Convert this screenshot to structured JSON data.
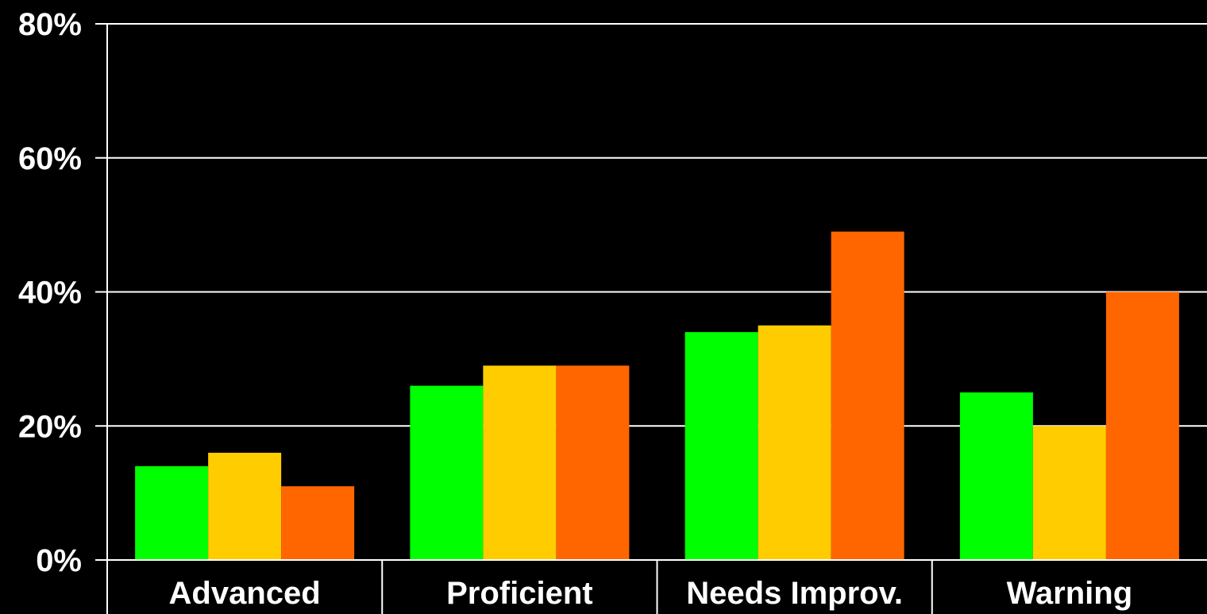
{
  "chart_data": {
    "type": "bar",
    "categories": [
      "Advanced",
      "Proficient",
      "Needs Improv.",
      "Warning"
    ],
    "series": [
      {
        "values": [
          14,
          26,
          34,
          25
        ],
        "color": "#00ff00"
      },
      {
        "values": [
          16,
          29,
          35,
          20
        ],
        "color": "#ffcc00"
      },
      {
        "values": [
          11,
          29,
          49,
          40
        ],
        "color": "#ff6600"
      }
    ],
    "ylim": [
      0,
      80
    ],
    "yticks": [
      0,
      20,
      40,
      60,
      80
    ],
    "ytick_labels": [
      "0%",
      "20%",
      "40%",
      "60%",
      "80%"
    ],
    "grid": true,
    "background": "#000000",
    "axis_color": "#ffffff",
    "legend": "none",
    "title": "",
    "xlabel": "",
    "ylabel": ""
  }
}
